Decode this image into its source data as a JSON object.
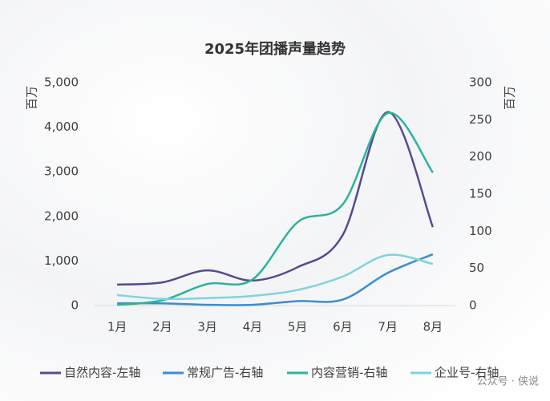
{
  "chart_data": {
    "type": "line",
    "title": "2025年团播声量趋势",
    "y_label": "百万",
    "y2_label": "百万",
    "categories": [
      "1月",
      "2月",
      "3月",
      "4月",
      "5月",
      "6月",
      "7月",
      "8月"
    ],
    "ylim": [
      0,
      5000
    ],
    "yticks": [
      0,
      {
        "value": 1000,
        "label": "1,000"
      },
      {
        "value": 2000,
        "label": "2,000"
      },
      {
        "value": 3000,
        "label": "3,000"
      },
      {
        "value": 4000,
        "label": "4,000"
      },
      {
        "value": 5000,
        "label": "5,000"
      }
    ],
    "y2lim": [
      0,
      300
    ],
    "y2ticks": [
      0,
      50,
      100,
      150,
      200,
      250,
      300
    ],
    "series": [
      {
        "name": "自然内容-左轴",
        "color": "#574a8f",
        "values": [
          470,
          520,
          790,
          560,
          860,
          1580,
          4340,
          1760
        ]
      },
      {
        "name": "常规广告-右轴",
        "color": "#3a8dd0",
        "axis": "y2",
        "values": [
          3,
          3,
          1,
          1,
          6,
          8,
          44,
          69
        ]
      },
      {
        "name": "内容营销-右轴",
        "color": "#2bb39a",
        "axis": "y2",
        "values": [
          1,
          7,
          29,
          35,
          112,
          136,
          259,
          179
        ]
      },
      {
        "name": "企业号-右轴",
        "color": "#80d3dd",
        "axis": "y2",
        "values": [
          14,
          9,
          10,
          13,
          21,
          39,
          68,
          56
        ]
      }
    ],
    "legend": "bottom",
    "watermark": "公众号 · 侠说"
  }
}
